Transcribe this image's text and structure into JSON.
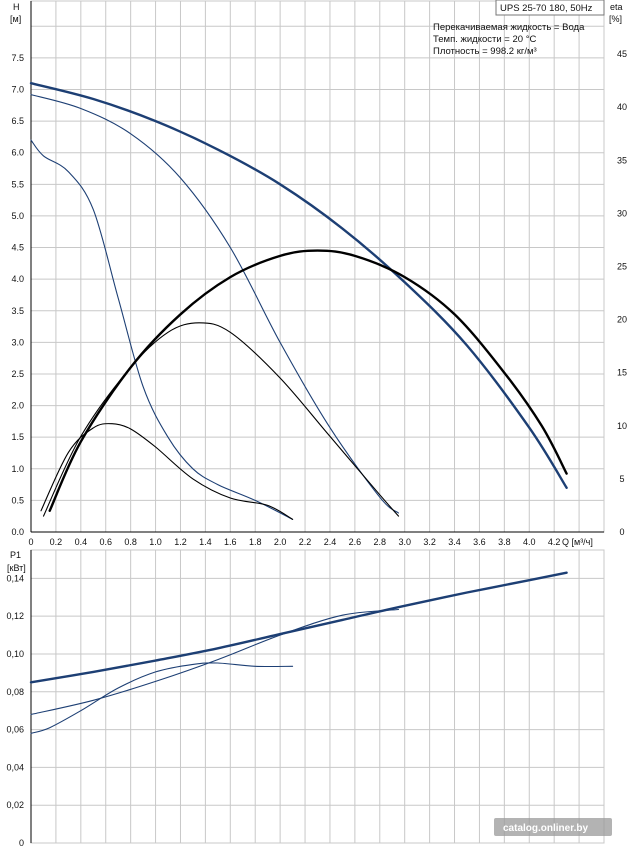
{
  "title_box": "UPS 25-70 180, 50Hz",
  "info": [
    "Перекачиваемая жидкость = Вода",
    "Темп. жидкости = 20 °C",
    "Плотность = 998.2 кг/м³"
  ],
  "watermark": "catalog.onliner.by",
  "colors": {
    "curve": "#1d3f74",
    "eta": "#000000",
    "grid": "#c8c8c8",
    "axis": "#000000"
  },
  "chart_data": [
    {
      "type": "line",
      "panel": "head-efficiency",
      "ylabel": "H",
      "yunit": "[м]",
      "y2label": "eta",
      "y2unit": "[%]",
      "xlabel": "Q [м³/ч]",
      "xlim": [
        0,
        4.6
      ],
      "ylim": [
        0,
        8.4
      ],
      "y2lim": [
        0,
        50
      ],
      "xticks": [
        "0",
        "0.2",
        "0.4",
        "0.6",
        "0.8",
        "1.0",
        "1.2",
        "1.4",
        "1.6",
        "1.8",
        "2.0",
        "2.2",
        "2.4",
        "2.6",
        "2.8",
        "3.0",
        "3.2",
        "3.4",
        "3.6",
        "3.8",
        "4.0",
        "4.2"
      ],
      "yticks": [
        "0.0",
        "0.5",
        "1.0",
        "1.5",
        "2.0",
        "2.5",
        "3.0",
        "3.5",
        "4.0",
        "4.5",
        "5.0",
        "5.5",
        "6.0",
        "6.5",
        "7.0",
        "7.5"
      ],
      "y2ticks": [
        "0",
        "5",
        "10",
        "15",
        "20",
        "25",
        "30",
        "35",
        "40",
        "45"
      ],
      "grid": true,
      "series": [
        {
          "axis": "H",
          "style": "bold",
          "x": [
            0,
            0.5,
            1.0,
            1.5,
            2.0,
            2.5,
            3.0,
            3.5,
            4.0,
            4.3
          ],
          "y": [
            7.1,
            6.85,
            6.5,
            6.05,
            5.5,
            4.8,
            3.95,
            2.95,
            1.65,
            0.7
          ]
        },
        {
          "axis": "H",
          "style": "thin",
          "x": [
            0,
            0.4,
            0.8,
            1.2,
            1.6,
            2.0,
            2.4,
            2.8,
            2.95
          ],
          "y": [
            6.92,
            6.7,
            6.3,
            5.6,
            4.5,
            3.0,
            1.65,
            0.55,
            0.3
          ]
        },
        {
          "axis": "H",
          "style": "thin",
          "x": [
            0,
            0.1,
            0.3,
            0.5,
            0.7,
            0.9,
            1.1,
            1.3,
            1.5,
            1.8,
            2.1
          ],
          "y": [
            6.2,
            5.95,
            5.7,
            5.1,
            3.7,
            2.3,
            1.5,
            1.0,
            0.75,
            0.5,
            0.2
          ]
        },
        {
          "axis": "eta",
          "style": "bold",
          "x": [
            0.15,
            0.4,
            0.8,
            1.2,
            1.6,
            2.0,
            2.3,
            2.6,
            3.0,
            3.4,
            3.8,
            4.1,
            4.3
          ],
          "y": [
            2,
            8.5,
            15.5,
            20.5,
            24,
            26,
            26.5,
            26,
            24,
            20.5,
            15,
            10,
            5.5
          ]
        },
        {
          "axis": "eta",
          "style": "thin",
          "x": [
            0.1,
            0.4,
            0.8,
            1.1,
            1.35,
            1.6,
            2.0,
            2.4,
            2.8,
            2.95
          ],
          "y": [
            1.5,
            9,
            15.5,
            18.8,
            19.7,
            18.8,
            14.5,
            9,
            3.5,
            1.5
          ]
        },
        {
          "axis": "eta",
          "style": "thin",
          "x": [
            0.08,
            0.3,
            0.5,
            0.65,
            0.8,
            1.0,
            1.3,
            1.6,
            1.9,
            2.1
          ],
          "y": [
            2,
            7.5,
            9.8,
            10.2,
            9.7,
            8,
            5,
            3.2,
            2.5,
            1.2
          ]
        }
      ]
    },
    {
      "type": "line",
      "panel": "power",
      "ylabel": "P1",
      "yunit": "[кВт]",
      "xlim": [
        0,
        4.6
      ],
      "ylim": [
        0,
        0.155
      ],
      "yticks": [
        "0",
        "0,02",
        "0,04",
        "0,06",
        "0,08",
        "0,10",
        "0,12",
        "0,14"
      ],
      "grid": true,
      "series": [
        {
          "style": "bold",
          "x": [
            0,
            0.5,
            1.0,
            1.5,
            2.0,
            2.5,
            3.0,
            3.5,
            4.0,
            4.3
          ],
          "y": [
            0.085,
            0.0905,
            0.0965,
            0.103,
            0.1105,
            0.118,
            0.1255,
            0.1325,
            0.139,
            0.143
          ]
        },
        {
          "style": "thin",
          "x": [
            0,
            0.5,
            1.0,
            1.5,
            2.0,
            2.5,
            2.95
          ],
          "y": [
            0.068,
            0.0755,
            0.0855,
            0.097,
            0.11,
            0.1205,
            0.1235
          ]
        },
        {
          "style": "thin",
          "x": [
            0,
            0.15,
            0.4,
            0.7,
            1.0,
            1.3,
            1.5,
            1.8,
            2.1
          ],
          "y": [
            0.058,
            0.061,
            0.07,
            0.082,
            0.0905,
            0.0945,
            0.0952,
            0.0935,
            0.0935
          ]
        }
      ]
    }
  ]
}
